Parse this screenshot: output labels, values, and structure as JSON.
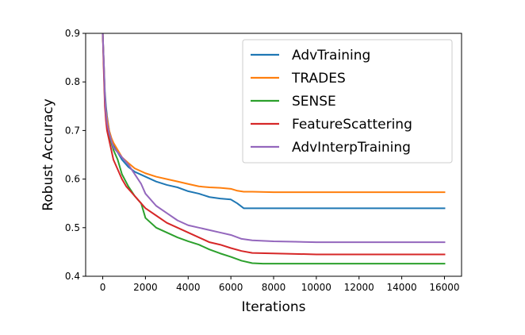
{
  "chart_data": {
    "type": "line",
    "xlabel": "Iterations",
    "ylabel": "Robust Accuracy",
    "xlim": [
      -800,
      16800
    ],
    "ylim": [
      0.4,
      0.9
    ],
    "xticks": [
      0,
      2000,
      4000,
      6000,
      8000,
      10000,
      12000,
      14000,
      16000
    ],
    "yticks": [
      0.4,
      0.5,
      0.6,
      0.7,
      0.8,
      0.9
    ],
    "xtick_labels": [
      "0",
      "2000",
      "4000",
      "6000",
      "8000",
      "10000",
      "12000",
      "14000",
      "16000"
    ],
    "ytick_labels": [
      "0.4",
      "0.5",
      "0.6",
      "0.7",
      "0.8",
      "0.9"
    ],
    "grid": false,
    "legend_position": "top-right",
    "series": [
      {
        "name": "AdvTraining",
        "color": "#1f77b4",
        "x": [
          0,
          50,
          100,
          150,
          200,
          300,
          400,
          500,
          700,
          900,
          1200,
          1500,
          2000,
          2500,
          3000,
          3500,
          4000,
          4500,
          5000,
          5500,
          6000,
          6300,
          6600,
          7000,
          8000,
          10000,
          12000,
          14000,
          16000
        ],
        "y": [
          0.9,
          0.84,
          0.78,
          0.75,
          0.73,
          0.7,
          0.685,
          0.67,
          0.655,
          0.64,
          0.625,
          0.615,
          0.605,
          0.595,
          0.588,
          0.583,
          0.575,
          0.57,
          0.563,
          0.56,
          0.558,
          0.55,
          0.54,
          0.54,
          0.54,
          0.54,
          0.54,
          0.54,
          0.54
        ]
      },
      {
        "name": "TRADES",
        "color": "#ff7f0e",
        "x": [
          0,
          50,
          100,
          150,
          200,
          300,
          400,
          500,
          700,
          900,
          1200,
          1500,
          2000,
          2500,
          3000,
          3500,
          4000,
          4500,
          5000,
          5500,
          6000,
          6300,
          6600,
          7000,
          8000,
          10000,
          12000,
          14000,
          16000
        ],
        "y": [
          0.9,
          0.84,
          0.77,
          0.74,
          0.725,
          0.7,
          0.685,
          0.675,
          0.66,
          0.645,
          0.633,
          0.622,
          0.612,
          0.605,
          0.6,
          0.595,
          0.59,
          0.585,
          0.583,
          0.582,
          0.58,
          0.576,
          0.574,
          0.574,
          0.573,
          0.573,
          0.573,
          0.573,
          0.573
        ]
      },
      {
        "name": "SENSE",
        "color": "#2ca02c",
        "x": [
          0,
          50,
          100,
          150,
          200,
          300,
          400,
          500,
          700,
          900,
          1200,
          1500,
          1800,
          2000,
          2500,
          3000,
          3500,
          4000,
          4500,
          5000,
          5500,
          6000,
          6500,
          7000,
          7500,
          8000,
          10000,
          12000,
          14000,
          16000
        ],
        "y": [
          0.9,
          0.83,
          0.76,
          0.73,
          0.71,
          0.69,
          0.675,
          0.66,
          0.64,
          0.61,
          0.585,
          0.565,
          0.55,
          0.52,
          0.5,
          0.49,
          0.48,
          0.472,
          0.465,
          0.455,
          0.447,
          0.44,
          0.432,
          0.427,
          0.426,
          0.426,
          0.426,
          0.426,
          0.426,
          0.426
        ]
      },
      {
        "name": "FeatureScattering",
        "color": "#d62728",
        "x": [
          0,
          50,
          100,
          150,
          200,
          300,
          400,
          500,
          700,
          900,
          1100,
          1300,
          1600,
          2000,
          2500,
          3000,
          3500,
          4000,
          4500,
          5000,
          5500,
          6000,
          6500,
          7000,
          8000,
          9000,
          10000,
          12000,
          14000,
          16000
        ],
        "y": [
          0.9,
          0.82,
          0.75,
          0.72,
          0.7,
          0.68,
          0.66,
          0.64,
          0.62,
          0.6,
          0.585,
          0.575,
          0.56,
          0.54,
          0.525,
          0.51,
          0.5,
          0.49,
          0.48,
          0.47,
          0.465,
          0.458,
          0.452,
          0.448,
          0.447,
          0.446,
          0.445,
          0.445,
          0.445,
          0.445
        ]
      },
      {
        "name": "AdvInterpTraining",
        "color": "#9467bd",
        "x": [
          0,
          50,
          100,
          150,
          200,
          300,
          400,
          500,
          700,
          900,
          1200,
          1500,
          1800,
          2000,
          2500,
          3000,
          3500,
          4000,
          4500,
          5000,
          5500,
          6000,
          6500,
          7000,
          8000,
          9000,
          10000,
          12000,
          14000,
          16000
        ],
        "y": [
          0.9,
          0.84,
          0.77,
          0.735,
          0.715,
          0.695,
          0.68,
          0.665,
          0.655,
          0.645,
          0.63,
          0.61,
          0.59,
          0.57,
          0.545,
          0.53,
          0.515,
          0.505,
          0.5,
          0.495,
          0.49,
          0.485,
          0.477,
          0.474,
          0.472,
          0.471,
          0.47,
          0.47,
          0.47,
          0.47
        ]
      }
    ]
  }
}
